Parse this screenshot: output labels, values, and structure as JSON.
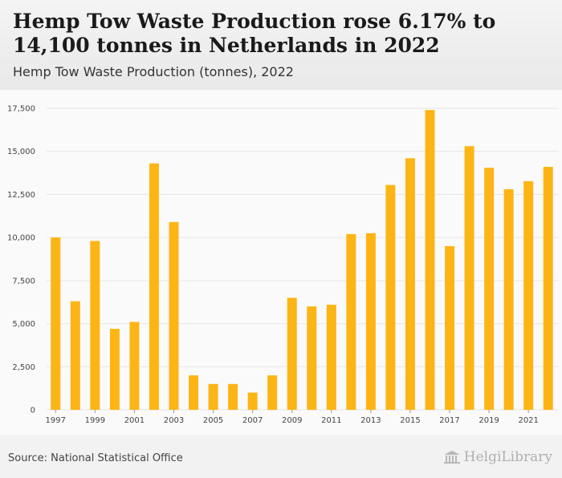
{
  "header": {
    "title": "Hemp Tow Waste Production rose 6.17% to 14,100 tonnes in Netherlands in 2022",
    "subtitle": "Hemp Tow Waste Production (tonnes), 2022"
  },
  "footer": {
    "source": "Source: National Statistical Office",
    "logo_text": "HelgiLibrary"
  },
  "colors": {
    "bar": "#FDB515",
    "grid": "#e6e6e6"
  },
  "chart_data": {
    "type": "bar",
    "categories": [
      "1997",
      "1998",
      "1999",
      "2000",
      "2001",
      "2002",
      "2003",
      "2004",
      "2005",
      "2006",
      "2007",
      "2008",
      "2009",
      "2010",
      "2011",
      "2012",
      "2013",
      "2014",
      "2015",
      "2016",
      "2017",
      "2018",
      "2019",
      "2020",
      "2021",
      "2022"
    ],
    "values": [
      10000,
      6300,
      9800,
      4700,
      5100,
      14300,
      10900,
      2000,
      1500,
      1500,
      1000,
      2000,
      6500,
      6000,
      6100,
      10200,
      10250,
      13050,
      14600,
      17400,
      9500,
      15300,
      14050,
      12800,
      13270,
      14100
    ],
    "x_tick_labels": [
      "1997",
      "1999",
      "2001",
      "2003",
      "2005",
      "2007",
      "2009",
      "2011",
      "2013",
      "2015",
      "2017",
      "2019",
      "2021"
    ],
    "y_tick_labels": [
      "0",
      "2,500",
      "5,000",
      "7,500",
      "10,000",
      "12,500",
      "15,000",
      "17,500"
    ],
    "y_ticks": [
      0,
      2500,
      5000,
      7500,
      10000,
      12500,
      15000,
      17500
    ],
    "ylim": [
      0,
      17500
    ],
    "grid": true
  }
}
